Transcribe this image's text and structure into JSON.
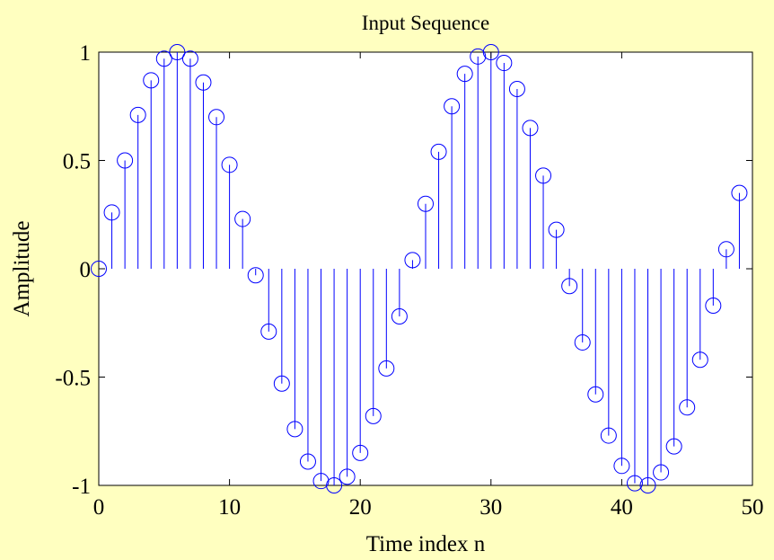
{
  "window": {
    "background": "#ffffc0",
    "plot_background": "#ffffff",
    "series_color": "#0000ff"
  },
  "chart_data": {
    "type": "stem",
    "title": "Input Sequence",
    "xlabel": "Time index n",
    "ylabel": "Amplitude",
    "xlim": [
      0,
      50
    ],
    "ylim": [
      -1,
      1
    ],
    "xticks": [
      0,
      10,
      20,
      30,
      40,
      50
    ],
    "xtick_labels": [
      "0",
      "10",
      "20",
      "30",
      "40",
      "50"
    ],
    "yticks": [
      -1,
      -0.5,
      0,
      0.5,
      1
    ],
    "ytick_labels": [
      "-1",
      "-0.5",
      "0",
      "0.5",
      "1"
    ],
    "grid": false,
    "marker": "circle-open",
    "x": [
      0,
      1,
      2,
      3,
      4,
      5,
      6,
      7,
      8,
      9,
      10,
      11,
      12,
      13,
      14,
      15,
      16,
      17,
      18,
      19,
      20,
      21,
      22,
      23,
      24,
      25,
      26,
      27,
      28,
      29,
      30,
      31,
      32,
      33,
      34,
      35,
      36,
      37,
      38,
      39,
      40,
      41,
      42,
      43,
      44,
      45,
      46,
      47,
      48,
      49
    ],
    "y": [
      0,
      0.26,
      0.5,
      0.71,
      0.87,
      0.97,
      1.0,
      0.97,
      0.86,
      0.7,
      0.48,
      0.23,
      -0.03,
      -0.29,
      -0.53,
      -0.74,
      -0.89,
      -0.98,
      -1.0,
      -0.96,
      -0.85,
      -0.68,
      -0.46,
      -0.22,
      0.04,
      0.3,
      0.54,
      0.75,
      0.9,
      0.98,
      1.0,
      0.95,
      0.83,
      0.65,
      0.43,
      0.18,
      -0.08,
      -0.34,
      -0.58,
      -0.77,
      -0.91,
      -0.99,
      -1.0,
      -0.94,
      -0.82,
      -0.64,
      -0.42,
      -0.17,
      0.09,
      0.35
    ]
  }
}
